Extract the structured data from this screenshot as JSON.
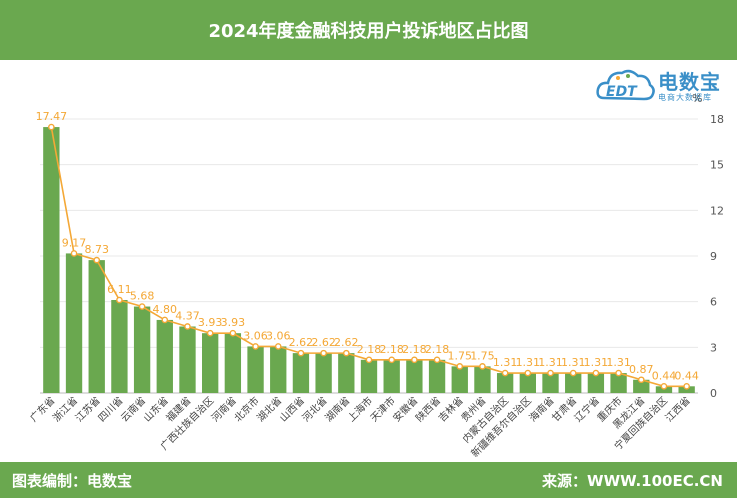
{
  "header": {
    "title": "2024年度金融科技用户投诉地区占比图"
  },
  "footer": {
    "left": "图表编制：电数宝",
    "right": "来源：WWW.100EC.CN"
  },
  "logo": {
    "name": "电数宝",
    "sub": "电商大数据库",
    "mark": "EDT"
  },
  "colors": {
    "header": "#6aa84f",
    "bar": "#6aa84f",
    "line": "#f4a836",
    "label": "#f4a836",
    "axis": "#555555",
    "logo": "#3a8fc8"
  },
  "chart_data": {
    "type": "bar",
    "categories": [
      "广东省",
      "浙江省",
      "江苏省",
      "四川省",
      "云南省",
      "山东省",
      "福建省",
      "广西壮族自治区",
      "河南省",
      "北京市",
      "湖北省",
      "山西省",
      "河北省",
      "湖南省",
      "上海市",
      "天津市",
      "安徽省",
      "陕西省",
      "吉林省",
      "贵州省",
      "内蒙古自治区",
      "新疆维吾尔自治区",
      "海南省",
      "甘肃省",
      "辽宁省",
      "重庆市",
      "黑龙江省",
      "宁夏回族自治区",
      "江西省"
    ],
    "series": [
      {
        "values": [
          17.47,
          9.17,
          8.73,
          6.11,
          5.68,
          4.8,
          4.37,
          3.93,
          3.93,
          3.06,
          3.06,
          2.62,
          2.62,
          2.62,
          2.18,
          2.18,
          2.18,
          2.18,
          1.75,
          1.75,
          1.31,
          1.31,
          1.31,
          1.31,
          1.31,
          1.31,
          0.87,
          0.44,
          0.44
        ]
      }
    ],
    "data_labels": [
      "17.47",
      "9.17",
      "8.73",
      "6.11",
      "5.68",
      "4.80",
      "4.37",
      "3.93",
      "3.93",
      "3.06",
      "3.06",
      "2.62",
      "2.62",
      "2.62",
      "2.18",
      "2.18",
      "2.18",
      "2.18",
      "1.75",
      "1.75",
      "1.31",
      "1.31",
      "1.31",
      "1.31",
      "1.31",
      "1.31",
      "0.87",
      "0.44",
      "0.44"
    ],
    "y_axis": {
      "min": 0,
      "max": 18,
      "ticks": [
        0,
        3,
        6,
        9,
        12,
        15,
        18
      ],
      "unit": "%",
      "position": "right"
    },
    "grid": true,
    "overlay_line": true
  }
}
